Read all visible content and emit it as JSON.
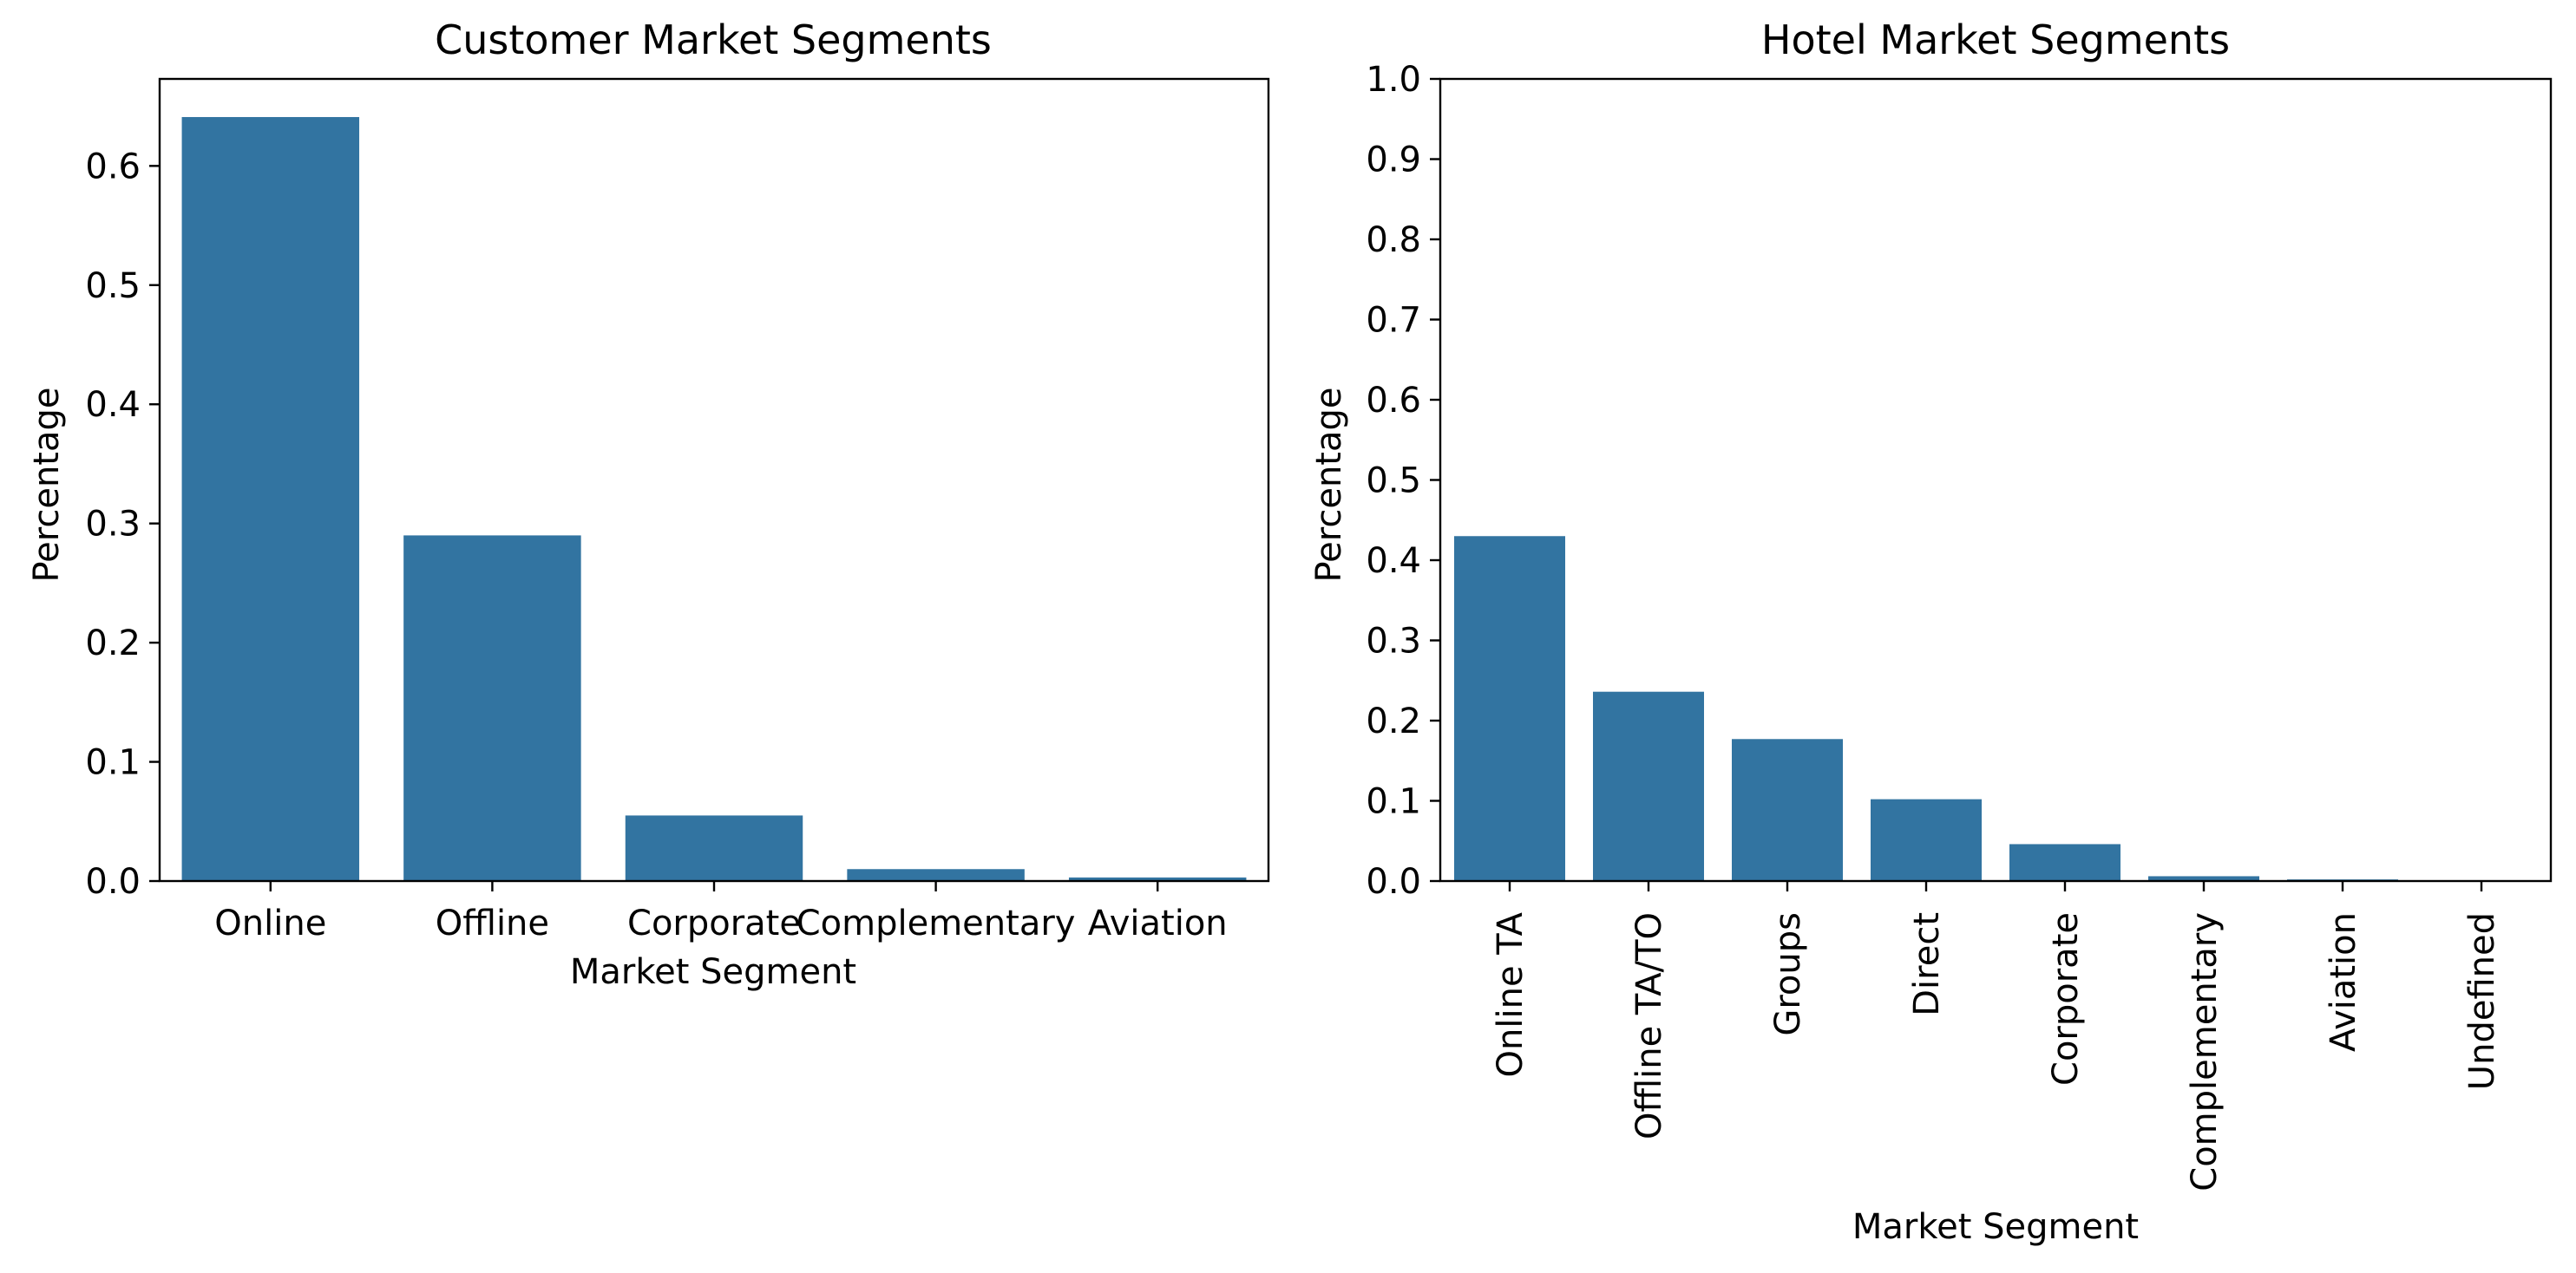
{
  "chart_data": [
    {
      "type": "bar",
      "title": "Customer Market Segments",
      "xlabel": "Market Segment",
      "ylabel": "Percentage",
      "categories": [
        "Online",
        "Offline",
        "Corporate",
        "Complementary",
        "Aviation"
      ],
      "values": [
        0.641,
        0.29,
        0.055,
        0.01,
        0.003
      ],
      "ylim": [
        0,
        0.673
      ],
      "yticks": [
        "0.0",
        "0.1",
        "0.2",
        "0.3",
        "0.4",
        "0.5",
        "0.6"
      ],
      "color": "#3274a1",
      "grid": false
    },
    {
      "type": "bar",
      "title": "Hotel Market Segments",
      "xlabel": "Market Segment",
      "ylabel": "Percentage",
      "categories": [
        "Online TA",
        "Offline TA/TO",
        "Groups",
        "Direct",
        "Corporate",
        "Complementary",
        "Aviation",
        "Undefined"
      ],
      "values": [
        0.43,
        0.236,
        0.177,
        0.102,
        0.046,
        0.006,
        0.002,
        0.0
      ],
      "ylim": [
        0,
        1.0
      ],
      "yticks": [
        "0.0",
        "0.1",
        "0.2",
        "0.3",
        "0.4",
        "0.5",
        "0.6",
        "0.7",
        "0.8",
        "0.9",
        "1.0"
      ],
      "color": "#3274a1",
      "grid": false
    }
  ]
}
